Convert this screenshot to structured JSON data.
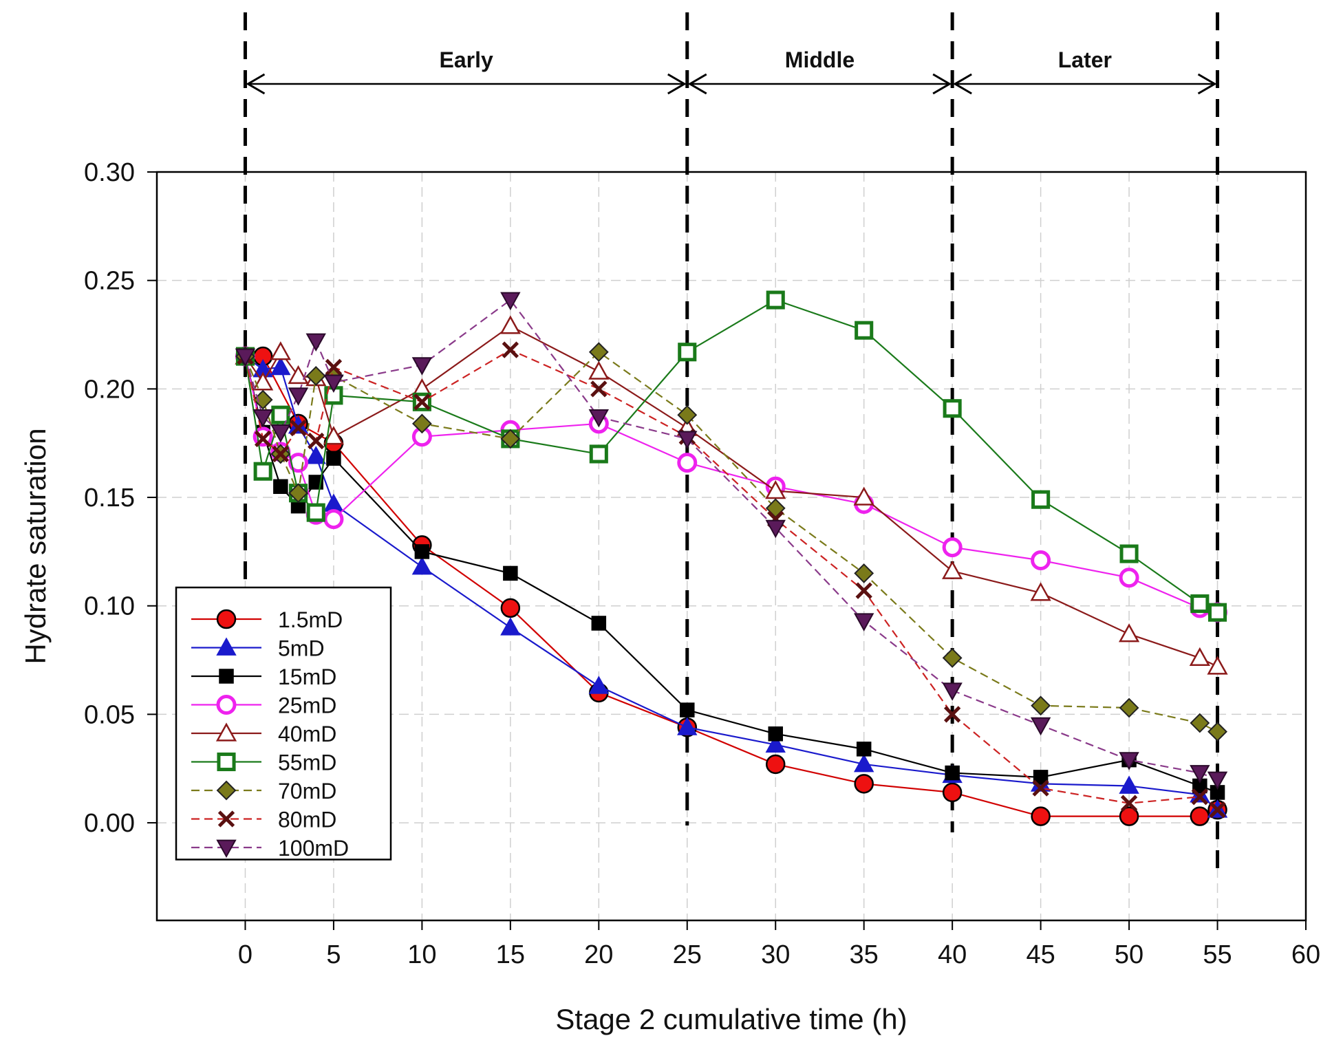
{
  "chart_data": {
    "type": "line",
    "xlabel": "Stage 2 cumulative time (h)",
    "ylabel": "Hydrate saturation",
    "xlim": [
      -5,
      60
    ],
    "ylim": [
      -0.045,
      0.3
    ],
    "xticks": [
      0,
      5,
      10,
      15,
      20,
      25,
      30,
      35,
      40,
      45,
      50,
      55,
      60
    ],
    "yticks": [
      0.0,
      0.05,
      0.1,
      0.15,
      0.2,
      0.25,
      0.3
    ],
    "ytick_labels": [
      "0.00",
      "0.05",
      "0.10",
      "0.15",
      "0.20",
      "0.25",
      "0.30"
    ],
    "grid": true,
    "legend_position": "bottom-left",
    "stage_lines_x": [
      0,
      25,
      40,
      55
    ],
    "stages": [
      {
        "label": "Early",
        "from": 0,
        "to": 25
      },
      {
        "label": "Middle",
        "from": 25,
        "to": 40
      },
      {
        "label": "Later",
        "from": 40,
        "to": 55
      }
    ],
    "series": [
      {
        "name": "1.5mD",
        "color": "#d10000",
        "marker": "circle",
        "fill": "#ee1111",
        "dash": false,
        "x": [
          0,
          1,
          3,
          5,
          10,
          15,
          20,
          25,
          30,
          35,
          40,
          45,
          50,
          54,
          55
        ],
        "y": [
          0.215,
          0.215,
          0.184,
          0.175,
          0.128,
          0.099,
          0.06,
          0.044,
          0.027,
          0.018,
          0.014,
          0.003,
          0.003,
          0.003,
          0.006
        ]
      },
      {
        "name": "5mD",
        "color": "#1a1acc",
        "marker": "triangle",
        "fill": "#1a1acc",
        "dash": false,
        "x": [
          0,
          1,
          2,
          3,
          4,
          5,
          10,
          15,
          20,
          25,
          30,
          35,
          40,
          45,
          50,
          54,
          55
        ],
        "y": [
          0.215,
          0.209,
          0.21,
          0.183,
          0.169,
          0.147,
          0.118,
          0.09,
          0.063,
          0.044,
          0.036,
          0.027,
          0.022,
          0.018,
          0.017,
          0.013,
          0.006
        ]
      },
      {
        "name": "15mD",
        "color": "#000000",
        "marker": "square",
        "fill": "#000000",
        "dash": false,
        "x": [
          0,
          1,
          2,
          3,
          4,
          5,
          10,
          15,
          20,
          25,
          30,
          35,
          40,
          45,
          50,
          54,
          55
        ],
        "y": [
          0.215,
          0.18,
          0.155,
          0.146,
          0.157,
          0.168,
          0.125,
          0.115,
          0.092,
          0.052,
          0.041,
          0.034,
          0.023,
          0.021,
          0.029,
          0.017,
          0.014
        ]
      },
      {
        "name": "25mD",
        "color": "#ee22ee",
        "marker": "circle-open",
        "fill": "#ffffff",
        "dash": false,
        "x": [
          0,
          1,
          2,
          3,
          4,
          5,
          10,
          15,
          20,
          25,
          30,
          35,
          40,
          45,
          50,
          54,
          55
        ],
        "y": [
          0.215,
          0.178,
          0.171,
          0.166,
          0.142,
          0.14,
          0.178,
          0.181,
          0.184,
          0.166,
          0.155,
          0.147,
          0.127,
          0.121,
          0.113,
          0.099,
          0.097
        ]
      },
      {
        "name": "40mD",
        "color": "#8b1a1a",
        "marker": "triangle-open",
        "fill": "#ffffff",
        "dash": false,
        "x": [
          0,
          1,
          2,
          3,
          4,
          5,
          10,
          15,
          20,
          25,
          30,
          35,
          40,
          45,
          50,
          54,
          55
        ],
        "y": [
          0.215,
          0.203,
          0.217,
          0.206,
          0.205,
          0.178,
          0.2,
          0.229,
          0.208,
          0.182,
          0.153,
          0.15,
          0.116,
          0.106,
          0.087,
          0.076,
          0.072
        ]
      },
      {
        "name": "55mD",
        "color": "#1a7a1a",
        "marker": "square-open",
        "fill": "#ffffff",
        "dash": false,
        "x": [
          0,
          1,
          2,
          3,
          4,
          5,
          10,
          15,
          20,
          25,
          30,
          35,
          40,
          45,
          50,
          54,
          55
        ],
        "y": [
          0.215,
          0.162,
          0.188,
          0.152,
          0.143,
          0.197,
          0.194,
          0.177,
          0.17,
          0.217,
          0.241,
          0.227,
          0.191,
          0.149,
          0.124,
          0.101,
          0.097
        ]
      },
      {
        "name": "70mD",
        "color": "#7a7a1a",
        "marker": "diamond",
        "fill": "#7a7a1a",
        "dash": true,
        "x": [
          0,
          1,
          2,
          3,
          4,
          5,
          10,
          15,
          20,
          25,
          30,
          35,
          40,
          45,
          50,
          54,
          55
        ],
        "y": [
          0.215,
          0.195,
          0.17,
          0.152,
          0.206,
          0.206,
          0.184,
          0.177,
          0.217,
          0.188,
          0.145,
          0.115,
          0.076,
          0.054,
          0.053,
          0.046,
          0.042
        ]
      },
      {
        "name": "80mD",
        "color": "#cc2222",
        "marker": "x",
        "fill": "#5a1010",
        "dash": true,
        "x": [
          0,
          1,
          2,
          3,
          4,
          5,
          10,
          15,
          20,
          25,
          30,
          35,
          40,
          45,
          50,
          54,
          55
        ],
        "y": [
          0.215,
          0.177,
          0.17,
          0.182,
          0.176,
          0.21,
          0.194,
          0.218,
          0.2,
          0.178,
          0.14,
          0.107,
          0.05,
          0.016,
          0.009,
          0.012,
          0.006
        ]
      },
      {
        "name": "100mD",
        "color": "#8a3a8a",
        "marker": "triangle-down",
        "fill": "#5a1a5a",
        "dash": true,
        "x": [
          0,
          1,
          2,
          3,
          4,
          5,
          10,
          15,
          20,
          25,
          30,
          35,
          40,
          45,
          50,
          54,
          55
        ],
        "y": [
          0.215,
          0.187,
          0.18,
          0.197,
          0.222,
          0.203,
          0.211,
          0.241,
          0.187,
          0.177,
          0.136,
          0.093,
          0.061,
          0.045,
          0.029,
          0.023,
          0.02
        ]
      }
    ]
  }
}
